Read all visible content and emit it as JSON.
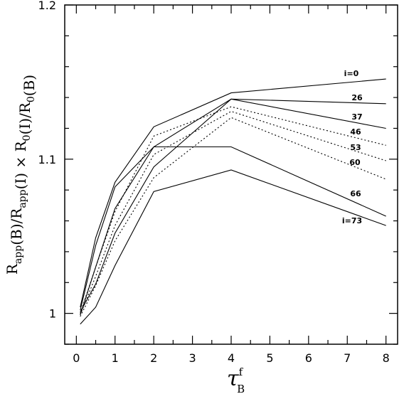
{
  "chart_data": {
    "type": "line",
    "ylabel": {
      "parts": [
        {
          "text": "R",
          "sub": "app"
        },
        {
          "text": "(B)/R",
          "sub": "app"
        },
        {
          "text": "(I) × R",
          "sub": "0"
        },
        {
          "text": "(I)/R",
          "sub": "0"
        },
        {
          "text": "(B)"
        }
      ]
    },
    "xlabel": {
      "symbol": "τ",
      "sup": "f",
      "sub": "B"
    },
    "xlim": [
      -0.3,
      8.3
    ],
    "ylim": [
      0.98,
      1.2
    ],
    "xticks": [
      0,
      1,
      2,
      3,
      4,
      5,
      6,
      7,
      8
    ],
    "yticks": [
      1,
      1.1,
      1.2
    ],
    "ytick_labels": [
      "1",
      "1.1",
      "1.2"
    ],
    "x": [
      0.1,
      0.5,
      1,
      2,
      4,
      8
    ],
    "series": [
      {
        "name": "i=0",
        "style": "solid",
        "values": [
          1.004,
          1.049,
          1.085,
          1.121,
          1.143,
          1.152
        ]
      },
      {
        "name": "26",
        "style": "solid",
        "values": [
          1.002,
          1.044,
          1.082,
          1.108,
          1.139,
          1.136
        ]
      },
      {
        "name": "37",
        "style": "solid",
        "values": [
          1.001,
          1.019,
          1.052,
          1.095,
          1.139,
          1.12
        ]
      },
      {
        "name": "46",
        "style": "dotted",
        "values": [
          1.0,
          1.03,
          1.066,
          1.115,
          1.134,
          1.109
        ]
      },
      {
        "name": "53",
        "style": "dotted",
        "values": [
          0.999,
          1.024,
          1.057,
          1.103,
          1.131,
          1.099
        ]
      },
      {
        "name": "60",
        "style": "dotted",
        "values": [
          0.998,
          1.018,
          1.047,
          1.088,
          1.127,
          1.087
        ]
      },
      {
        "name": "66",
        "style": "solid",
        "values": [
          0.999,
          1.03,
          1.068,
          1.108,
          1.108,
          1.063
        ]
      },
      {
        "name": "i=73",
        "style": "solid",
        "values": [
          0.993,
          1.004,
          1.031,
          1.079,
          1.093,
          1.057
        ]
      }
    ]
  }
}
